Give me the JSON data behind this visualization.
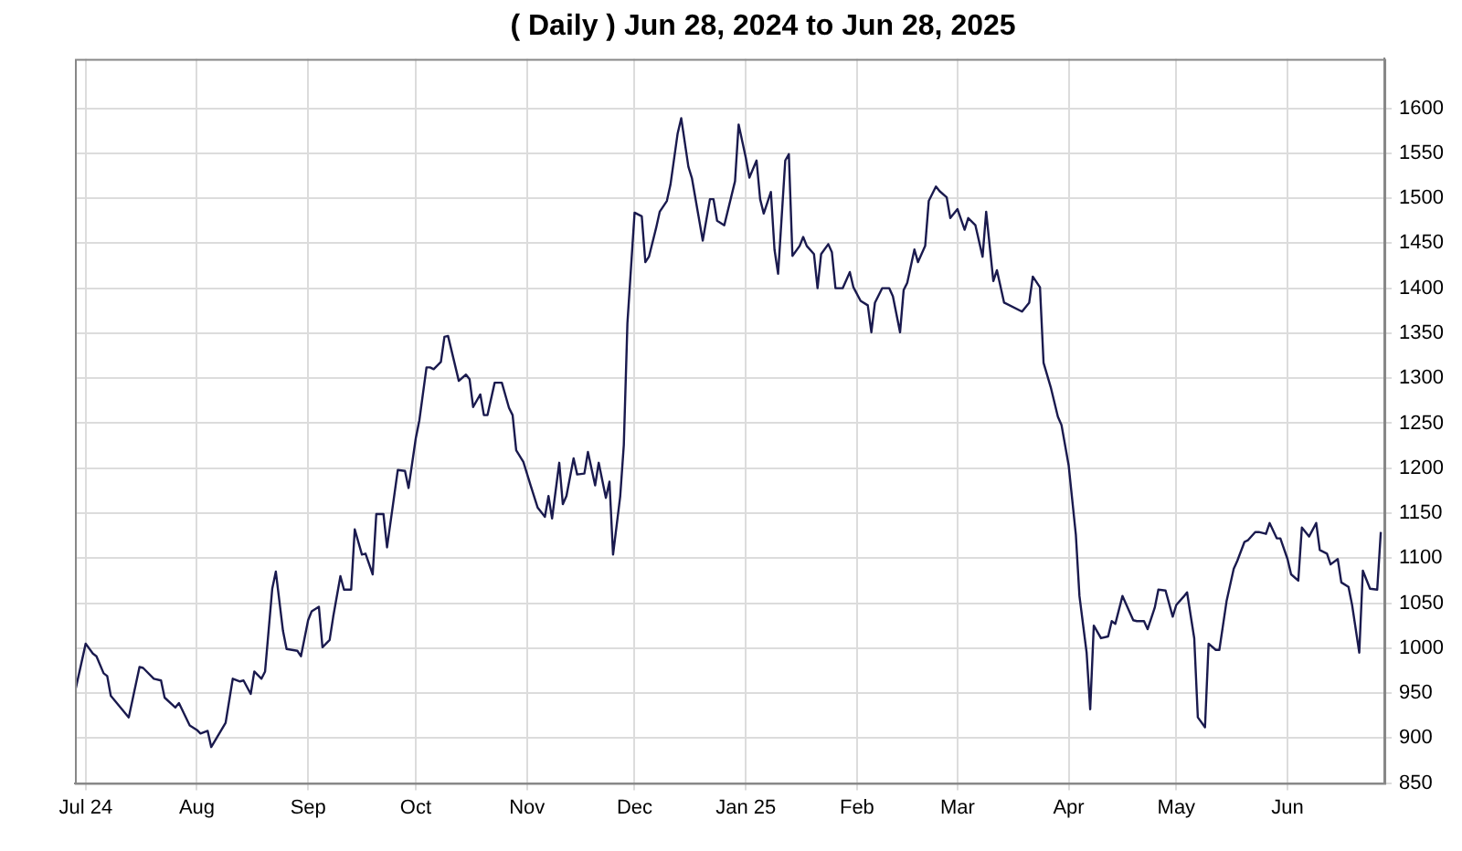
{
  "chart_data": {
    "type": "line",
    "title": "( Daily ) Jun 28, 2024 to Jun 28, 2025",
    "x": [
      "2024-06-28",
      "2024-07-01",
      "2024-07-03",
      "2024-07-04",
      "2024-07-06",
      "2024-07-07",
      "2024-07-08",
      "2024-07-13",
      "2024-07-16",
      "2024-07-17",
      "2024-07-20",
      "2024-07-22",
      "2024-07-23",
      "2024-07-26",
      "2024-07-27",
      "2024-07-30",
      "2024-08-01",
      "2024-08-02",
      "2024-08-04",
      "2024-08-05",
      "2024-08-09",
      "2024-08-11",
      "2024-08-13",
      "2024-08-14",
      "2024-08-16",
      "2024-08-17",
      "2024-08-19",
      "2024-08-20",
      "2024-08-22",
      "2024-08-23",
      "2024-08-25",
      "2024-08-26",
      "2024-08-29",
      "2024-08-30",
      "2024-09-01",
      "2024-09-02",
      "2024-09-04",
      "2024-09-05",
      "2024-09-07",
      "2024-09-08",
      "2024-09-10",
      "2024-09-11",
      "2024-09-13",
      "2024-09-14",
      "2024-09-16",
      "2024-09-17",
      "2024-09-19",
      "2024-09-20",
      "2024-09-22",
      "2024-09-23",
      "2024-09-26",
      "2024-09-28",
      "2024-09-29",
      "2024-10-01",
      "2024-10-02",
      "2024-10-04",
      "2024-10-05",
      "2024-10-06",
      "2024-10-08",
      "2024-10-09",
      "2024-10-10",
      "2024-10-13",
      "2024-10-15",
      "2024-10-16",
      "2024-10-17",
      "2024-10-19",
      "2024-10-20",
      "2024-10-21",
      "2024-10-23",
      "2024-10-25",
      "2024-10-27",
      "2024-10-28",
      "2024-10-29",
      "2024-10-31",
      "2024-11-02",
      "2024-11-04",
      "2024-11-06",
      "2024-11-07",
      "2024-11-08",
      "2024-11-10",
      "2024-11-11",
      "2024-11-12",
      "2024-11-14",
      "2024-11-15",
      "2024-11-17",
      "2024-11-18",
      "2024-11-20",
      "2024-11-21",
      "2024-11-23",
      "2024-11-24",
      "2024-11-25",
      "2024-11-27",
      "2024-11-28",
      "2024-11-29",
      "2024-12-01",
      "2024-12-03",
      "2024-12-04",
      "2024-12-05",
      "2024-12-07",
      "2024-12-08",
      "2024-12-10",
      "2024-12-11",
      "2024-12-13",
      "2024-12-14",
      "2024-12-16",
      "2024-12-17",
      "2024-12-20",
      "2024-12-22",
      "2024-12-23",
      "2024-12-24",
      "2024-12-26",
      "2024-12-29",
      "2024-12-30",
      "2025-01-01",
      "2025-01-02",
      "2025-01-04",
      "2025-01-05",
      "2025-01-06",
      "2025-01-08",
      "2025-01-09",
      "2025-01-10",
      "2025-01-12",
      "2025-01-13",
      "2025-01-14",
      "2025-01-16",
      "2025-01-17",
      "2025-01-18",
      "2025-01-20",
      "2025-01-21",
      "2025-01-22",
      "2025-01-24",
      "2025-01-25",
      "2025-01-26",
      "2025-01-28",
      "2025-01-30",
      "2025-01-31",
      "2025-02-02",
      "2025-02-04",
      "2025-02-05",
      "2025-02-06",
      "2025-02-08",
      "2025-02-10",
      "2025-02-11",
      "2025-02-13",
      "2025-02-14",
      "2025-02-15",
      "2025-02-17",
      "2025-02-18",
      "2025-02-20",
      "2025-02-21",
      "2025-02-23",
      "2025-02-24",
      "2025-02-26",
      "2025-02-27",
      "2025-03-01",
      "2025-03-03",
      "2025-03-04",
      "2025-03-06",
      "2025-03-08",
      "2025-03-09",
      "2025-03-11",
      "2025-03-12",
      "2025-03-14",
      "2025-03-19",
      "2025-03-21",
      "2025-03-22",
      "2025-03-24",
      "2025-03-25",
      "2025-03-27",
      "2025-03-29",
      "2025-03-30",
      "2025-04-01",
      "2025-04-03",
      "2025-04-04",
      "2025-04-06",
      "2025-04-07",
      "2025-04-08",
      "2025-04-10",
      "2025-04-12",
      "2025-04-13",
      "2025-04-14",
      "2025-04-16",
      "2025-04-19",
      "2025-04-20",
      "2025-04-22",
      "2025-04-23",
      "2025-04-25",
      "2025-04-26",
      "2025-04-28",
      "2025-04-30",
      "2025-05-01",
      "2025-05-03",
      "2025-05-04",
      "2025-05-06",
      "2025-05-07",
      "2025-05-09",
      "2025-05-10",
      "2025-05-12",
      "2025-05-13",
      "2025-05-15",
      "2025-05-17",
      "2025-05-18",
      "2025-05-20",
      "2025-05-21",
      "2025-05-23",
      "2025-05-24",
      "2025-05-26",
      "2025-05-27",
      "2025-05-29",
      "2025-05-30",
      "2025-06-01",
      "2025-06-02",
      "2025-06-04",
      "2025-06-05",
      "2025-06-07",
      "2025-06-09",
      "2025-06-10",
      "2025-06-12",
      "2025-06-13",
      "2025-06-15",
      "2025-06-16",
      "2025-06-18",
      "2025-06-19",
      "2025-06-21",
      "2025-06-22",
      "2025-06-24",
      "2025-06-26",
      "2025-06-27"
    ],
    "series": [
      {
        "color": "#1a1a4e",
        "values": [
          951,
          1005,
          994,
          991,
          972,
          969,
          947,
          923,
          979,
          978,
          966,
          964,
          945,
          934,
          939,
          914,
          909,
          905,
          908,
          890,
          917,
          966,
          963,
          964,
          949,
          974,
          966,
          974,
          1066,
          1085,
          1019,
          999,
          997,
          991,
          1031,
          1041,
          1046,
          1001,
          1009,
          1035,
          1080,
          1065,
          1065,
          1132,
          1104,
          1105,
          1082,
          1149,
          1149,
          1112,
          1198,
          1197,
          1178,
          1233,
          1253,
          1312,
          1312,
          1310,
          1318,
          1346,
          1347,
          1297,
          1304,
          1299,
          1268,
          1282,
          1259,
          1259,
          1295,
          1295,
          1267,
          1259,
          1220,
          1207,
          1181,
          1156,
          1146,
          1169,
          1144,
          1206,
          1160,
          1169,
          1211,
          1193,
          1194,
          1218,
          1181,
          1206,
          1167,
          1185,
          1104,
          1169,
          1226,
          1361,
          1484,
          1480,
          1429,
          1435,
          1467,
          1485,
          1497,
          1515,
          1572,
          1589,
          1535,
          1522,
          1453,
          1499,
          1499,
          1475,
          1470,
          1519,
          1582,
          1545,
          1523,
          1542,
          1499,
          1483,
          1507,
          1443,
          1416,
          1542,
          1549,
          1436,
          1447,
          1457,
          1447,
          1438,
          1400,
          1438,
          1449,
          1440,
          1400,
          1400,
          1418,
          1401,
          1386,
          1381,
          1351,
          1384,
          1400,
          1400,
          1391,
          1351,
          1398,
          1406,
          1443,
          1429,
          1447,
          1497,
          1513,
          1508,
          1501,
          1478,
          1488,
          1465,
          1478,
          1470,
          1435,
          1485,
          1408,
          1420,
          1384,
          1374,
          1384,
          1413,
          1401,
          1317,
          1290,
          1257,
          1248,
          1203,
          1126,
          1058,
          995,
          932,
          1025,
          1011,
          1013,
          1030,
          1027,
          1058,
          1031,
          1030,
          1030,
          1021,
          1045,
          1065,
          1064,
          1035,
          1048,
          1057,
          1062,
          1011,
          923,
          912,
          1005,
          998,
          998,
          1052,
          1088,
          1097,
          1118,
          1120,
          1129,
          1129,
          1127,
          1139,
          1122,
          1122,
          1099,
          1082,
          1075,
          1134,
          1124,
          1139,
          1109,
          1105,
          1093,
          1099,
          1073,
          1068,
          1048,
          995,
          1086,
          1066,
          1065,
          1129
        ]
      }
    ],
    "xlim": [
      "2024-06-28",
      "2025-06-28"
    ],
    "xticks": [
      {
        "value": "2024-07-01",
        "label": "Jul 24"
      },
      {
        "value": "2024-08-01",
        "label": "Aug"
      },
      {
        "value": "2024-09-01",
        "label": "Sep"
      },
      {
        "value": "2024-10-01",
        "label": "Oct"
      },
      {
        "value": "2024-11-01",
        "label": "Nov"
      },
      {
        "value": "2024-12-01",
        "label": "Dec"
      },
      {
        "value": "2025-01-01",
        "label": "Jan 25"
      },
      {
        "value": "2025-02-01",
        "label": "Feb"
      },
      {
        "value": "2025-03-01",
        "label": "Mar"
      },
      {
        "value": "2025-04-01",
        "label": "Apr"
      },
      {
        "value": "2025-05-01",
        "label": "May"
      },
      {
        "value": "2025-06-01",
        "label": "Jun"
      }
    ],
    "ylim": [
      850,
      1655
    ],
    "yticks": [
      850,
      900,
      950,
      1000,
      1050,
      1100,
      1150,
      1200,
      1250,
      1300,
      1350,
      1400,
      1450,
      1500,
      1550,
      1600
    ],
    "grid": true
  }
}
